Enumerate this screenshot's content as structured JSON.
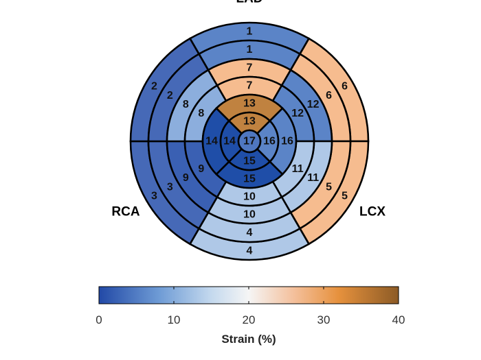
{
  "chart_data": {
    "type": "bullseye",
    "artery_labels": {
      "top": "LAD",
      "left": "RCA",
      "right": "LCX"
    },
    "colorbar": {
      "min": 0,
      "max": 40,
      "ticks": [
        0,
        10,
        20,
        30,
        40
      ],
      "label": "Strain (%)",
      "colors": [
        {
          "value": 0,
          "color": "#2249a6"
        },
        {
          "value": 8,
          "color": "#6e9bd5"
        },
        {
          "value": 15,
          "color": "#c4d9ee"
        },
        {
          "value": 20,
          "color": "#f5f5f5"
        },
        {
          "value": 26,
          "color": "#f4c09c"
        },
        {
          "value": 32,
          "color": "#e6913d"
        },
        {
          "value": 40,
          "color": "#8c5b26"
        }
      ]
    },
    "rings": [
      {
        "name": "outer",
        "segments": [
          {
            "label": "1",
            "color": "#5b84c7"
          },
          {
            "label": "6",
            "color": "#f6bc8f"
          },
          {
            "label": "5",
            "color": "#f6bc8f"
          },
          {
            "label": "4",
            "color": "#afc8e7"
          },
          {
            "label": "3",
            "color": "#4669b7"
          },
          {
            "label": "2",
            "color": "#4669b7"
          }
        ]
      },
      {
        "name": "outer-mid",
        "segments": [
          {
            "label": "1",
            "color": "#5b84c7"
          },
          {
            "label": "6",
            "color": "#f6bc8f"
          },
          {
            "label": "5",
            "color": "#f6bc8f"
          },
          {
            "label": "4",
            "color": "#afc8e7"
          },
          {
            "label": "3",
            "color": "#4669b7"
          },
          {
            "label": "2",
            "color": "#4669b7"
          }
        ]
      },
      {
        "name": "mid",
        "segments": [
          {
            "label": "7",
            "color": "#f6bc8f"
          },
          {
            "label": "12",
            "color": "#5b84c7"
          },
          {
            "label": "11",
            "color": "#afc8e7"
          },
          {
            "label": "10",
            "color": "#afc8e7"
          },
          {
            "label": "9",
            "color": "#3a60b3"
          },
          {
            "label": "8",
            "color": "#8caedd"
          }
        ]
      },
      {
        "name": "inner-mid",
        "segments": [
          {
            "label": "7",
            "color": "#f6bc8f"
          },
          {
            "label": "12",
            "color": "#5b84c7"
          },
          {
            "label": "11",
            "color": "#afc8e7"
          },
          {
            "label": "10",
            "color": "#afc8e7"
          },
          {
            "label": "9",
            "color": "#3a60b3"
          },
          {
            "label": "8",
            "color": "#8caedd"
          }
        ]
      },
      {
        "name": "apical",
        "segments": [
          {
            "label": "13",
            "color": "#c08240"
          },
          {
            "label": "16",
            "color": "#5b84c7"
          },
          {
            "label": "15",
            "color": "#1f4ea8"
          },
          {
            "label": "14",
            "color": "#1f4ea8"
          }
        ]
      },
      {
        "name": "apical-inner",
        "segments": [
          {
            "label": "13",
            "color": "#c08240"
          },
          {
            "label": "16",
            "color": "#5b84c7"
          },
          {
            "label": "15",
            "color": "#1f4ea8"
          },
          {
            "label": "14",
            "color": "#1f4ea8"
          }
        ]
      }
    ],
    "apex": {
      "label": "17",
      "color": "#4f77c0"
    }
  }
}
